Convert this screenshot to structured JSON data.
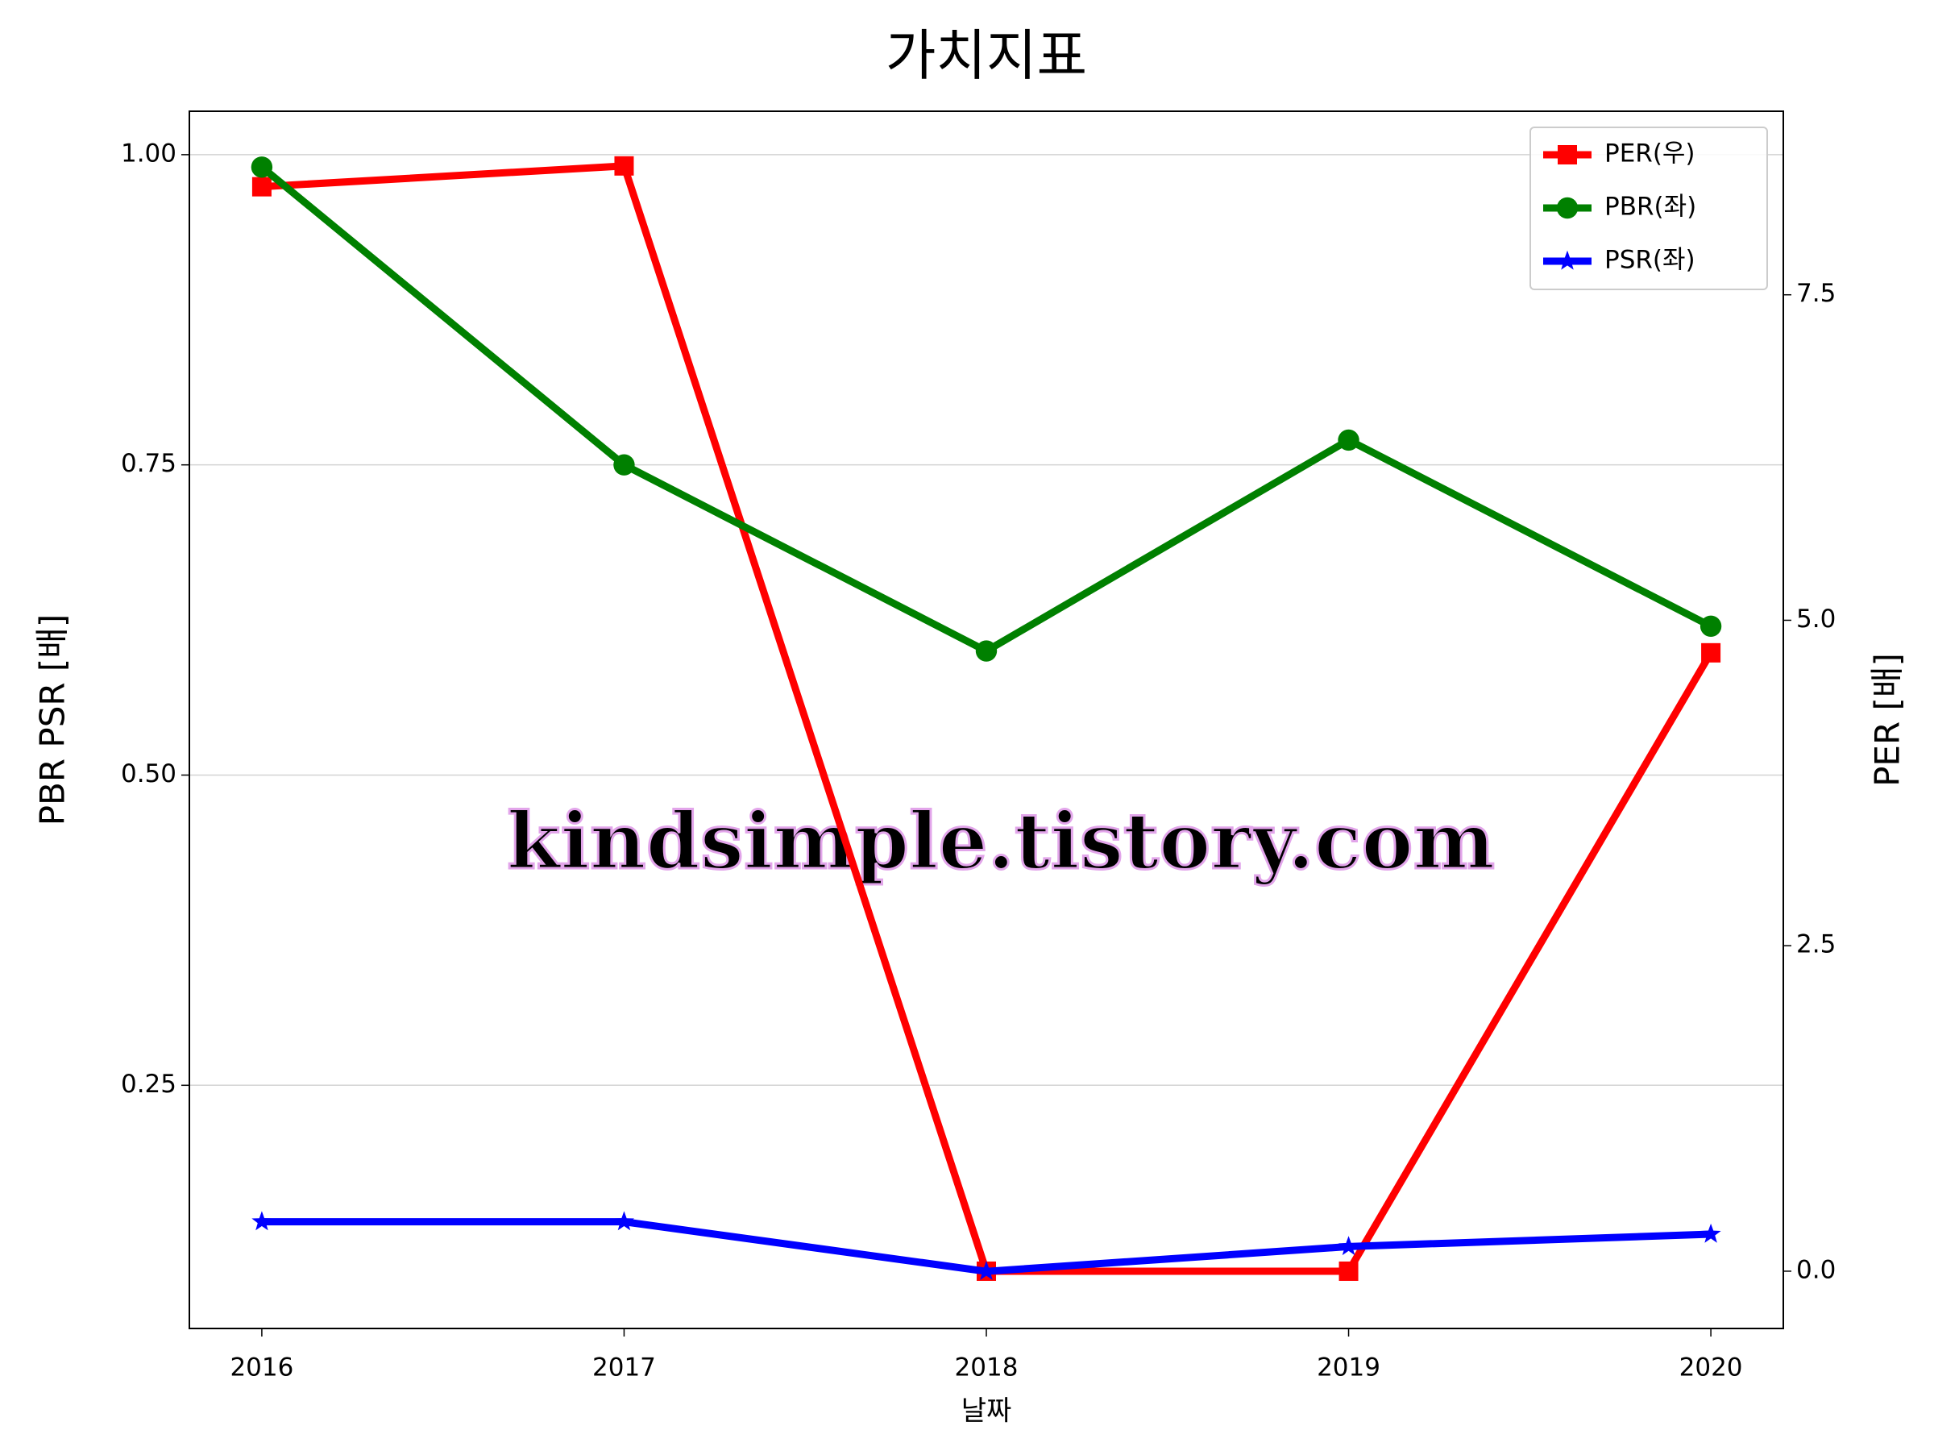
{
  "chart_data": {
    "type": "line",
    "title": "가치지표",
    "xlabel": "날짜",
    "ylabel": "PBR PSR [배]",
    "ylabel_color": "#008000",
    "y2label": "PER [배]",
    "y2label_color": "#ff0000",
    "watermark": "kindsimple.tistory.com",
    "x": [
      2016,
      2017,
      2018,
      2019,
      2020
    ],
    "xlim": [
      2015.8,
      2020.2
    ],
    "xticks": [
      2016,
      2017,
      2018,
      2019,
      2020
    ],
    "ylim": [
      0.054,
      1.035
    ],
    "yticks": [
      {
        "value": 0.25,
        "label": "0.25"
      },
      {
        "value": 0.5,
        "label": "0.50"
      },
      {
        "value": 0.75,
        "label": "0.75"
      },
      {
        "value": 1.0,
        "label": "1.00"
      }
    ],
    "y2lim": [
      -0.44,
      8.91
    ],
    "y2ticks": [
      {
        "value": 0,
        "label": "0.0"
      },
      {
        "value": 2.5,
        "label": "2.5"
      },
      {
        "value": 5,
        "label": "5.0"
      },
      {
        "value": 7.5,
        "label": "7.5"
      }
    ],
    "grid": true,
    "legend": "upper right",
    "series": [
      {
        "name": "PER(우)",
        "color": "#ff0000",
        "marker": "square",
        "axis": "y2",
        "values": [
          8.33,
          8.49,
          0,
          0,
          4.75
        ]
      },
      {
        "name": "PBR(좌)",
        "color": "#008000",
        "marker": "circle",
        "values": [
          0.99,
          0.75,
          0.6,
          0.77,
          0.62
        ]
      },
      {
        "name": "PSR(좌)",
        "color": "#0000ff",
        "marker": "star",
        "values": [
          0.14,
          0.14,
          0.1,
          0.12,
          0.13
        ]
      }
    ]
  }
}
